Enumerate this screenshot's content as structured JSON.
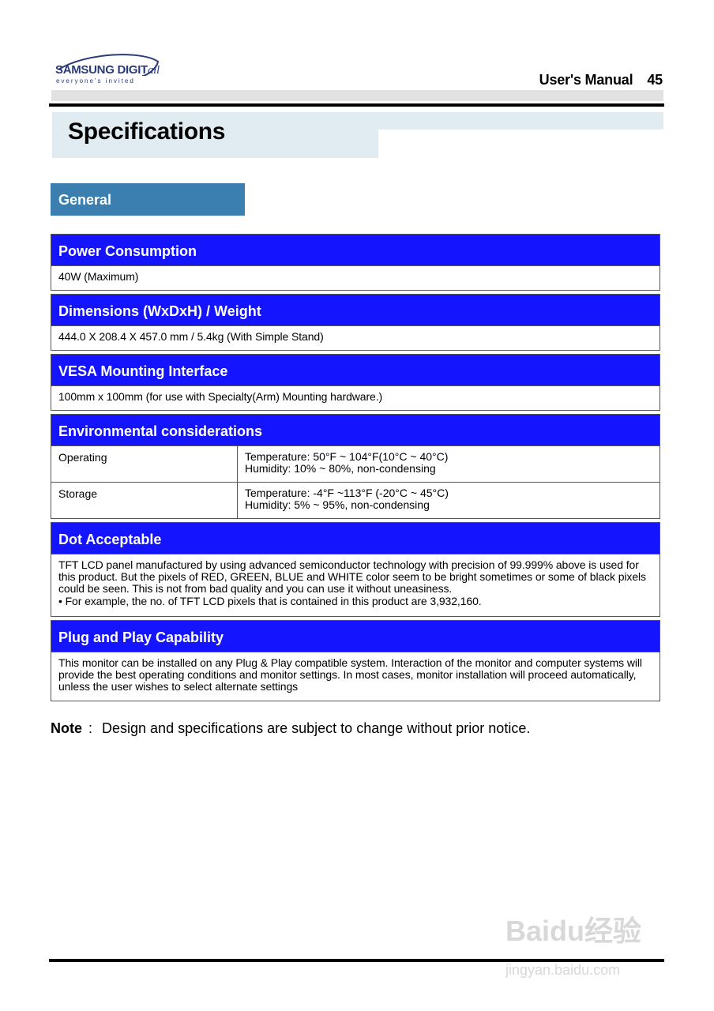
{
  "header": {
    "logo_text": "SAMSUNG DIGITall",
    "logo_tagline": "everyone's invited",
    "manual_label": "User's Manual",
    "page_number": "45"
  },
  "title": "Specifications",
  "section_tab": "General",
  "sections": {
    "power": {
      "heading": "Power Consumption",
      "body": "40W (Maximum)"
    },
    "dimensions": {
      "heading": "Dimensions (WxDxH) / Weight",
      "body": "444.0 X 208.4 X 457.0 mm / 5.4kg (With Simple Stand)"
    },
    "vesa": {
      "heading": "VESA Mounting Interface",
      "body": "100mm x 100mm (for use with Specialty(Arm) Mounting hardware.)"
    },
    "environment": {
      "heading": "Environmental considerations",
      "rows": [
        {
          "label": "Operating",
          "line1": "Temperature: 50°F ~ 104°F(10°C ~ 40°C)",
          "line2": "Humidity: 10% ~ 80%, non-condensing"
        },
        {
          "label": "Storage",
          "line1": "Temperature: -4°F ~113°F (-20°C ~ 45°C)",
          "line2": "Humidity: 5% ~ 95%, non-condensing"
        }
      ]
    },
    "dot": {
      "heading": "Dot Acceptable",
      "body": "TFT LCD panel manufactured by using advanced semiconductor technology with precision of 99.999% above is used for this product. But the pixels of RED, GREEN, BLUE and WHITE color seem to be bright sometimes or some of black pixels could be seen. This is not from bad quality and you can use it without uneasiness.",
      "bullet": "• For example, the no. of TFT LCD pixels that is contained in this product are 3,932,160."
    },
    "pnp": {
      "heading": "Plug and Play Capability",
      "body": "This monitor can be installed on any Plug & Play compatible system. Interaction of the monitor and computer systems will provide the best operating conditions and monitor settings. In most cases, monitor installation will proceed automatically, unless the user wishes to select alternate settings"
    }
  },
  "note": {
    "label": "Note",
    "colon": ":",
    "text": "Design and specifications are subject to change without prior notice."
  },
  "watermark": {
    "text": "Baidu经验",
    "url": "jingyan.baidu.com"
  },
  "colors": {
    "section_header": "#1414ff",
    "tab": "#3a7fb0",
    "title_band": "#e1ebf2"
  }
}
